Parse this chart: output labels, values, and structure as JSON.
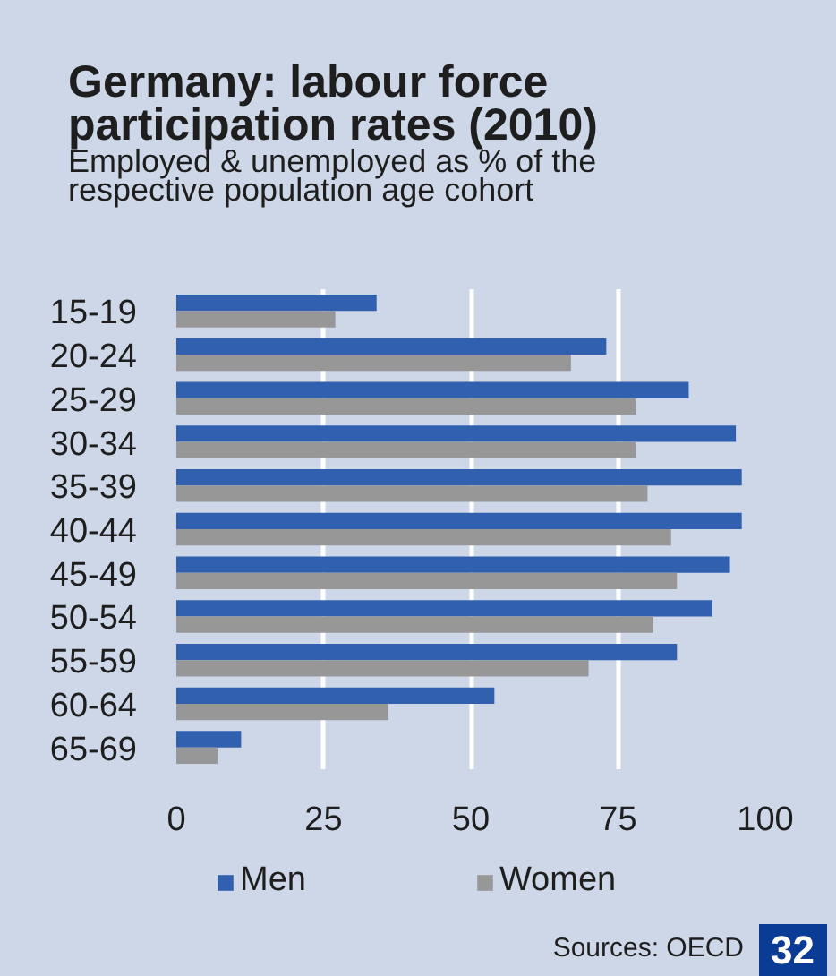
{
  "chart_data": {
    "type": "bar",
    "orientation": "horizontal",
    "title": "Germany: labour force participation rates (2010)",
    "subtitle": "Employed & unemployed as % of the respective population age cohort",
    "categories": [
      "15-19",
      "20-24",
      "25-29",
      "30-34",
      "35-39",
      "40-44",
      "45-49",
      "50-54",
      "55-59",
      "60-64",
      "65-69"
    ],
    "series": [
      {
        "name": "Men",
        "color": "#3060ae",
        "values": [
          34,
          73,
          87,
          95,
          96,
          96,
          94,
          91,
          85,
          54,
          11
        ]
      },
      {
        "name": "Women",
        "color": "#979797",
        "values": [
          27,
          67,
          78,
          78,
          80,
          84,
          85,
          81,
          70,
          36,
          7
        ]
      }
    ],
    "xlim": [
      0,
      100
    ],
    "xticks": [
      0,
      25,
      50,
      75,
      100
    ],
    "grid": "x",
    "legend": "bottom",
    "annotations": [
      "Sources: OECD",
      "32"
    ]
  }
}
